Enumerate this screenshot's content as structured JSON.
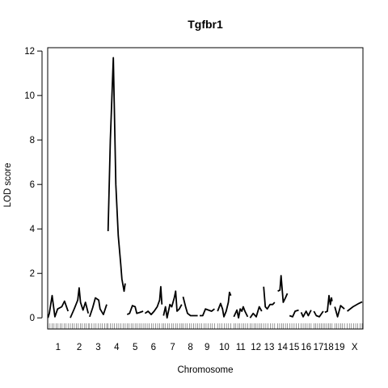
{
  "chart_data": {
    "type": "line",
    "title": "Tgfbr1",
    "xlabel": "Chromosome",
    "ylabel": "LOD score",
    "ylim": [
      -0.5,
      12.15
    ],
    "yticks": [
      0,
      2,
      4,
      6,
      8,
      10,
      12
    ],
    "grid": false,
    "legend": "none",
    "line_color": "#000000",
    "chromosomes": [
      {
        "label": "1",
        "start": 0,
        "end": 7.3,
        "points": [
          [
            0,
            0
          ],
          [
            0.5,
            0.2
          ],
          [
            1.5,
            1.0
          ],
          [
            2.5,
            0.05
          ],
          [
            3.5,
            0.4
          ],
          [
            5,
            0.5
          ],
          [
            6,
            0.75
          ],
          [
            7.3,
            0.3
          ]
        ]
      },
      {
        "label": "2",
        "start": 8.1,
        "end": 14.6,
        "points": [
          [
            8.1,
            0
          ],
          [
            9.5,
            0.4
          ],
          [
            10.8,
            0.8
          ],
          [
            11.3,
            1.35
          ],
          [
            11.8,
            0.7
          ],
          [
            12.7,
            0.35
          ],
          [
            13.6,
            0.7
          ],
          [
            14.6,
            0.2
          ]
        ]
      },
      {
        "label": "3",
        "start": 15.1,
        "end": 21.3,
        "points": [
          [
            15.1,
            0.05
          ],
          [
            16.2,
            0.45
          ],
          [
            17.2,
            0.9
          ],
          [
            18.4,
            0.8
          ],
          [
            18.9,
            0.4
          ],
          [
            20.1,
            0.15
          ],
          [
            21.3,
            0.6
          ]
        ]
      },
      {
        "label": "4",
        "start": 21.8,
        "end": 28.0,
        "points": [
          [
            21.8,
            3.9
          ],
          [
            22.6,
            8.0
          ],
          [
            23.7,
            11.7
          ],
          [
            24.6,
            6.0
          ],
          [
            25.5,
            3.7
          ],
          [
            26.4,
            2.4
          ],
          [
            26.8,
            1.75
          ],
          [
            27.6,
            1.2
          ],
          [
            28.0,
            1.55
          ]
        ]
      },
      {
        "label": "5",
        "start": 28.7,
        "end": 34.5,
        "points": [
          [
            28.7,
            0.15
          ],
          [
            29.6,
            0.2
          ],
          [
            30.6,
            0.55
          ],
          [
            31.6,
            0.5
          ],
          [
            32.2,
            0.2
          ],
          [
            33.4,
            0.25
          ],
          [
            34.5,
            0.3
          ]
        ]
      },
      {
        "label": "6",
        "start": 35.2,
        "end": 41.3,
        "points": [
          [
            35.2,
            0.2
          ],
          [
            36.3,
            0.3
          ],
          [
            37.4,
            0.15
          ],
          [
            38.5,
            0.3
          ],
          [
            39.6,
            0.5
          ],
          [
            40.5,
            0.8
          ],
          [
            40.9,
            1.4
          ],
          [
            41.3,
            0.6
          ]
        ]
      },
      {
        "label": "7",
        "start": 41.9,
        "end": 48.5,
        "points": [
          [
            41.9,
            0.1
          ],
          [
            42.6,
            0.5
          ],
          [
            43.2,
            0.0
          ],
          [
            44.2,
            0.6
          ],
          [
            44.9,
            0.5
          ],
          [
            45.8,
            0.9
          ],
          [
            46.3,
            1.2
          ],
          [
            46.8,
            0.3
          ],
          [
            47.6,
            0.4
          ],
          [
            48.5,
            0.6
          ]
        ]
      },
      {
        "label": "8",
        "start": 49.0,
        "end": 54.3,
        "points": [
          [
            49.0,
            0.95
          ],
          [
            49.9,
            0.5
          ],
          [
            50.6,
            0.2
          ],
          [
            51.7,
            0.1
          ],
          [
            52.8,
            0.1
          ],
          [
            54.3,
            0.1
          ]
        ]
      },
      {
        "label": "9",
        "start": 55.0,
        "end": 60.4,
        "points": [
          [
            55.0,
            0.1
          ],
          [
            56.1,
            0.1
          ],
          [
            57.1,
            0.4
          ],
          [
            58.2,
            0.35
          ],
          [
            59.3,
            0.3
          ],
          [
            60.4,
            0.4
          ]
        ]
      },
      {
        "label": "10",
        "start": 61.5,
        "end": 66.3,
        "points": [
          [
            61.5,
            0.3
          ],
          [
            62.6,
            0.65
          ],
          [
            63.3,
            0.4
          ],
          [
            63.8,
            0.05
          ],
          [
            64.6,
            0.3
          ],
          [
            65.4,
            0.7
          ],
          [
            65.8,
            1.15
          ],
          [
            66.3,
            1.0
          ]
        ]
      },
      {
        "label": "11",
        "start": 67.4,
        "end": 72.4,
        "points": [
          [
            67.4,
            0.05
          ],
          [
            68.5,
            0.35
          ],
          [
            69.1,
            0.0
          ],
          [
            69.7,
            0.4
          ],
          [
            70.3,
            0.3
          ],
          [
            70.8,
            0.5
          ],
          [
            71.4,
            0.3
          ],
          [
            72.4,
            0.05
          ]
        ]
      },
      {
        "label": "12",
        "start": 73.3,
        "end": 77.5,
        "points": [
          [
            73.3,
            0.0
          ],
          [
            74.4,
            0.2
          ],
          [
            75.5,
            0.05
          ],
          [
            76.6,
            0.5
          ],
          [
            77.5,
            0.3
          ]
        ]
      },
      {
        "label": "13",
        "start": 78.2,
        "end": 82.2,
        "points": [
          [
            78.2,
            1.4
          ],
          [
            78.8,
            0.5
          ],
          [
            79.5,
            0.4
          ],
          [
            80.5,
            0.6
          ],
          [
            81.5,
            0.6
          ],
          [
            82.2,
            0.7
          ]
        ]
      },
      {
        "label": "14",
        "start": 83.3,
        "end": 86.8,
        "points": [
          [
            83.3,
            1.2
          ],
          [
            84.1,
            1.25
          ],
          [
            84.5,
            1.9
          ],
          [
            85.3,
            0.7
          ],
          [
            86.1,
            0.9
          ],
          [
            86.8,
            1.1
          ]
        ]
      },
      {
        "label": "15",
        "start": 87.6,
        "end": 90.9,
        "points": [
          [
            87.6,
            0.1
          ],
          [
            88.7,
            0.05
          ],
          [
            89.6,
            0.3
          ],
          [
            90.9,
            0.35
          ]
        ]
      },
      {
        "label": "16",
        "start": 91.8,
        "end": 95.4,
        "points": [
          [
            91.8,
            0.25
          ],
          [
            92.5,
            0.05
          ],
          [
            93.6,
            0.3
          ],
          [
            94.4,
            0.1
          ],
          [
            95.4,
            0.35
          ]
        ]
      },
      {
        "label": "17",
        "start": 96.4,
        "end": 99.8,
        "points": [
          [
            96.4,
            0.3
          ],
          [
            97.3,
            0.1
          ],
          [
            98.4,
            0.05
          ],
          [
            99.8,
            0.3
          ]
        ]
      },
      {
        "label": "18",
        "start": 100.4,
        "end": 103.0,
        "points": [
          [
            100.4,
            0.25
          ],
          [
            101.3,
            0.3
          ],
          [
            101.9,
            1.0
          ],
          [
            102.4,
            0.6
          ],
          [
            102.8,
            0.9
          ],
          [
            103.0,
            0.75
          ]
        ]
      },
      {
        "label": "19",
        "start": 104.0,
        "end": 107.5,
        "points": [
          [
            104.0,
            0.5
          ],
          [
            105.0,
            0.05
          ],
          [
            106.1,
            0.55
          ],
          [
            107.5,
            0.4
          ]
        ]
      },
      {
        "label": "X",
        "start": 108.5,
        "end": 113.9,
        "points": [
          [
            108.5,
            0.3
          ],
          [
            110.6,
            0.5
          ],
          [
            112.7,
            0.65
          ],
          [
            113.9,
            0.72
          ]
        ]
      }
    ],
    "xlim": [
      -0.1,
      114.2
    ]
  }
}
